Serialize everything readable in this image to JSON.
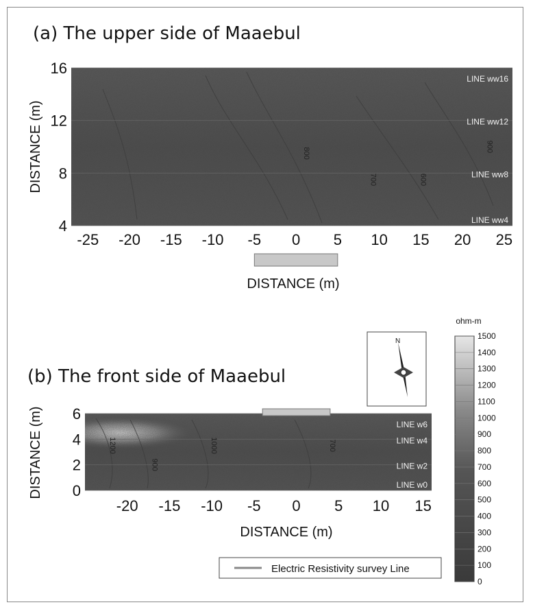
{
  "figure": {
    "panel_a_title": "(a) The upper side of Maaebul",
    "panel_b_title": "(b) The front side of Maaebul",
    "legend_label": "Electric Resistivity survey Line",
    "compass_label": "N"
  },
  "chart_data": [
    {
      "type": "heatmap",
      "title": "(a) The upper side of Maaebul",
      "xlabel": "DISTANCE (m)",
      "ylabel": "DISTANCE (m)",
      "xlim": [
        -27,
        26
      ],
      "ylim": [
        4,
        16
      ],
      "x_ticks": [
        -25,
        -20,
        -15,
        -10,
        -5,
        0,
        5,
        10,
        15,
        20,
        25
      ],
      "y_ticks": [
        4,
        8,
        12,
        16
      ],
      "survey_lines": [
        {
          "name": "LINE ww16",
          "y": 16
        },
        {
          "name": "LINE ww12",
          "y": 12
        },
        {
          "name": "LINE ww8",
          "y": 8
        },
        {
          "name": "LINE ww4",
          "y": 4
        }
      ],
      "contour_labels": [
        {
          "text": "800",
          "x": 1,
          "y": 9.5
        },
        {
          "text": "700",
          "x": 9,
          "y": 7.5
        },
        {
          "text": "600",
          "x": 15,
          "y": 7.5
        },
        {
          "text": "900",
          "x": 23,
          "y": 10
        }
      ],
      "electric_resistivity_survey_line": {
        "x_start": -5,
        "x_end": 5
      }
    },
    {
      "type": "heatmap",
      "title": "(b) The front side of Maaebul",
      "xlabel": "DISTANCE (m)",
      "ylabel": "DISTANCE (m)",
      "xlim": [
        -25,
        16
      ],
      "ylim": [
        0,
        6
      ],
      "x_ticks": [
        -20,
        -15,
        -10,
        -5,
        0,
        5,
        10,
        15
      ],
      "y_ticks": [
        0,
        2,
        4,
        6
      ],
      "survey_lines": [
        {
          "name": "LINE w6",
          "y": 6
        },
        {
          "name": "LINE w4",
          "y": 4
        },
        {
          "name": "LINE w2",
          "y": 2
        },
        {
          "name": "LINE w0",
          "y": 0
        }
      ],
      "contour_labels": [
        {
          "text": "1200",
          "x": -22,
          "y": 3.5
        },
        {
          "text": "900",
          "x": -17,
          "y": 2
        },
        {
          "text": "1000",
          "x": -10,
          "y": 3.5
        },
        {
          "text": "700",
          "x": 4,
          "y": 3.5
        }
      ],
      "electric_resistivity_survey_line": {
        "x_start": -4,
        "x_end": 4
      }
    },
    {
      "type": "colorbar",
      "title": "ohm-m",
      "min": 0,
      "max": 1500,
      "ticks": [
        0,
        100,
        200,
        300,
        400,
        500,
        600,
        700,
        800,
        900,
        1000,
        1100,
        1200,
        1300,
        1400,
        1500
      ]
    }
  ]
}
